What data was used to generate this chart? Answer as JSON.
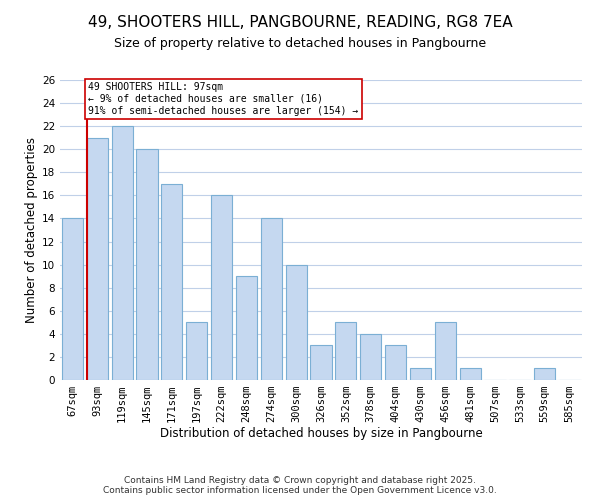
{
  "title": "49, SHOOTERS HILL, PANGBOURNE, READING, RG8 7EA",
  "subtitle": "Size of property relative to detached houses in Pangbourne",
  "xlabel": "Distribution of detached houses by size in Pangbourne",
  "ylabel": "Number of detached properties",
  "bin_labels": [
    "67sqm",
    "93sqm",
    "119sqm",
    "145sqm",
    "171sqm",
    "197sqm",
    "222sqm",
    "248sqm",
    "274sqm",
    "300sqm",
    "326sqm",
    "352sqm",
    "378sqm",
    "404sqm",
    "430sqm",
    "456sqm",
    "481sqm",
    "507sqm",
    "533sqm",
    "559sqm",
    "585sqm"
  ],
  "bar_heights": [
    14,
    21,
    22,
    20,
    17,
    5,
    16,
    9,
    14,
    10,
    3,
    5,
    4,
    3,
    1,
    5,
    1,
    0,
    0,
    1,
    0
  ],
  "bar_color": "#c5d8f0",
  "bar_edgecolor": "#7bafd4",
  "vline_x_index": 1,
  "vline_color": "#cc0000",
  "annotation_text": "49 SHOOTERS HILL: 97sqm\n← 9% of detached houses are smaller (16)\n91% of semi-detached houses are larger (154) →",
  "annotation_box_edgecolor": "#cc0000",
  "annotation_box_facecolor": "#ffffff",
  "footer_text": "Contains HM Land Registry data © Crown copyright and database right 2025.\nContains public sector information licensed under the Open Government Licence v3.0.",
  "ylim": [
    0,
    26
  ],
  "background_color": "#ffffff",
  "grid_color": "#c0d0e8",
  "title_fontsize": 11,
  "subtitle_fontsize": 9,
  "axis_label_fontsize": 8.5,
  "tick_fontsize": 7.5,
  "footer_fontsize": 6.5
}
